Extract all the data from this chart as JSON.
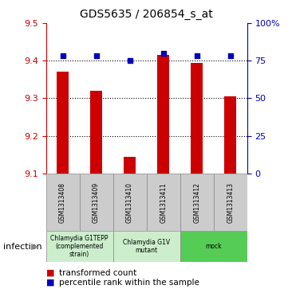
{
  "title": "GDS5635 / 206854_s_at",
  "samples": [
    "GSM1313408",
    "GSM1313409",
    "GSM1313410",
    "GSM1313411",
    "GSM1313412",
    "GSM1313413"
  ],
  "bar_values": [
    9.37,
    9.32,
    9.145,
    9.415,
    9.395,
    9.305
  ],
  "dot_values": [
    9.413,
    9.413,
    9.4,
    9.42,
    9.413,
    9.413
  ],
  "bar_color": "#cc0000",
  "dot_color": "#0000bb",
  "ylim": [
    9.1,
    9.5
  ],
  "yticks": [
    9.1,
    9.2,
    9.3,
    9.4,
    9.5
  ],
  "right_yticks": [
    0,
    25,
    50,
    75,
    100
  ],
  "right_ytick_labels": [
    "0",
    "25",
    "50",
    "75",
    "100%"
  ],
  "groups": [
    {
      "label": "Chlamydia G1TEPP\n(complemented\nstrain)",
      "start": 0,
      "end": 2,
      "color": "#cceecc"
    },
    {
      "label": "Chlamydia G1V\nmutant",
      "start": 2,
      "end": 4,
      "color": "#cceecc"
    },
    {
      "label": "mock",
      "start": 4,
      "end": 6,
      "color": "#55cc55"
    }
  ],
  "infection_label": "infection",
  "legend_items": [
    {
      "color": "#cc0000",
      "label": "transformed count"
    },
    {
      "color": "#0000bb",
      "label": "percentile rank within the sample"
    }
  ],
  "bar_bottom": 9.1,
  "bar_width": 0.35,
  "left_tick_color": "#cc0000",
  "right_tick_color": "#0000bb"
}
